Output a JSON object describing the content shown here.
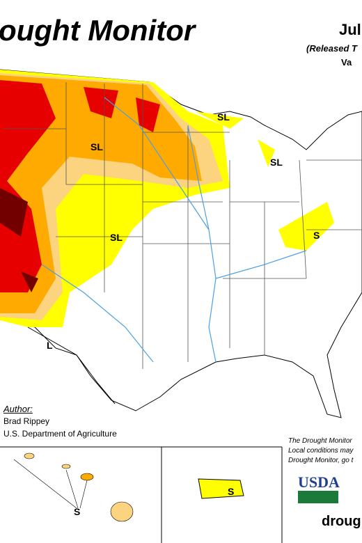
{
  "header": {
    "title": "ought Monitor",
    "date": "Jul",
    "released": "(Released T",
    "valid": "Va"
  },
  "map_labels": [
    {
      "text": "SL"
    },
    {
      "text": "SL"
    },
    {
      "text": "SL"
    },
    {
      "text": "SL"
    },
    {
      "text": "S"
    },
    {
      "text": "L"
    },
    {
      "text": "S"
    },
    {
      "text": "S"
    }
  ],
  "author": {
    "heading": "Author:",
    "name": "Brad Rippey",
    "org": "U.S. Department of Agriculture"
  },
  "note": {
    "line1": "The Drought Monitor",
    "line2": "Local conditions may",
    "line3": "Drought Monitor, go t"
  },
  "logo": {
    "text": "USDA"
  },
  "footer": {
    "url": "droug"
  }
}
